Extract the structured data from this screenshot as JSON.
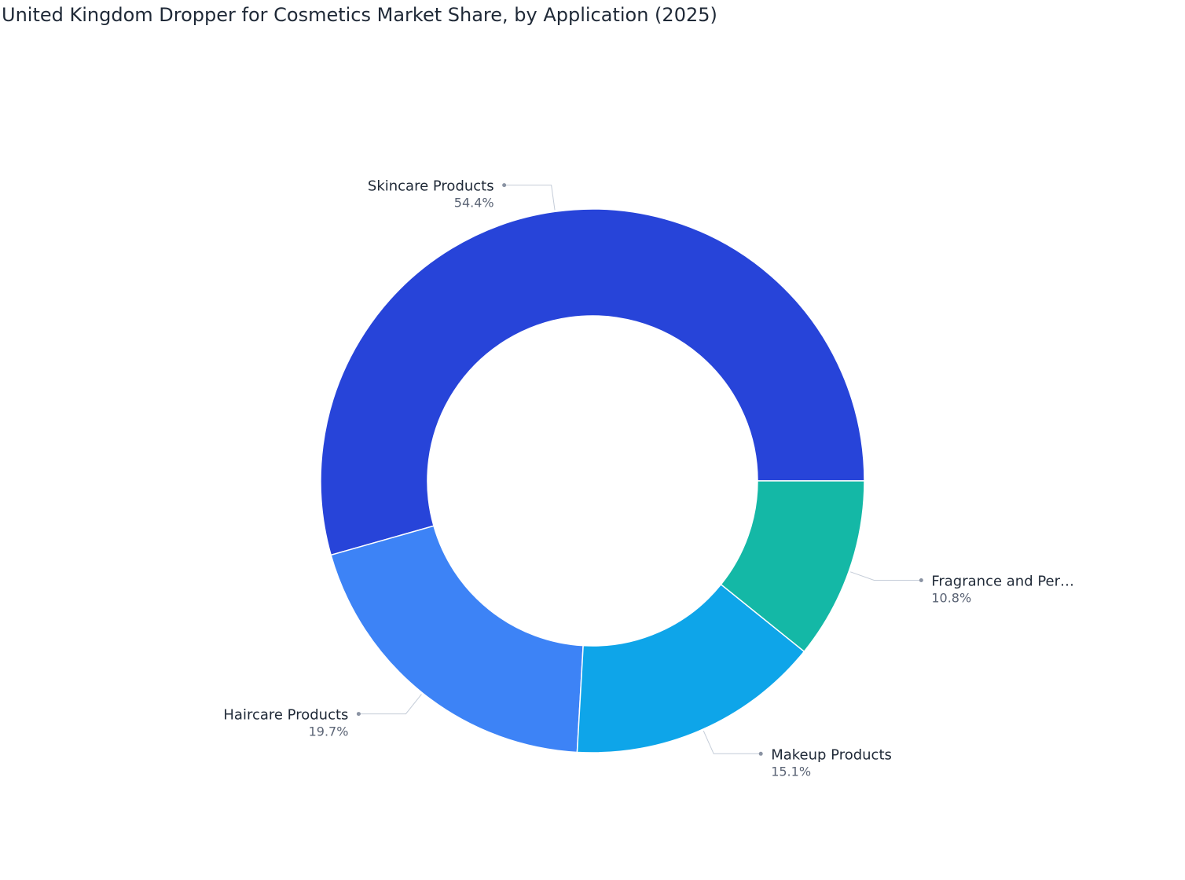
{
  "chart_data": {
    "type": "donut",
    "title": "United Kingdom Dropper for Cosmetics Market Share, by Application (2025)",
    "categories": [
      "Skincare Products",
      "Haircare Products",
      "Makeup Products",
      "Fragrance and Per…"
    ],
    "values": [
      54.4,
      19.7,
      15.1,
      10.8
    ],
    "value_labels": [
      "54.4%",
      "19.7%",
      "15.1%",
      "10.8%"
    ],
    "colors": [
      "#2744d9",
      "#3d83f6",
      "#0ea5e9",
      "#14b8a6"
    ]
  }
}
